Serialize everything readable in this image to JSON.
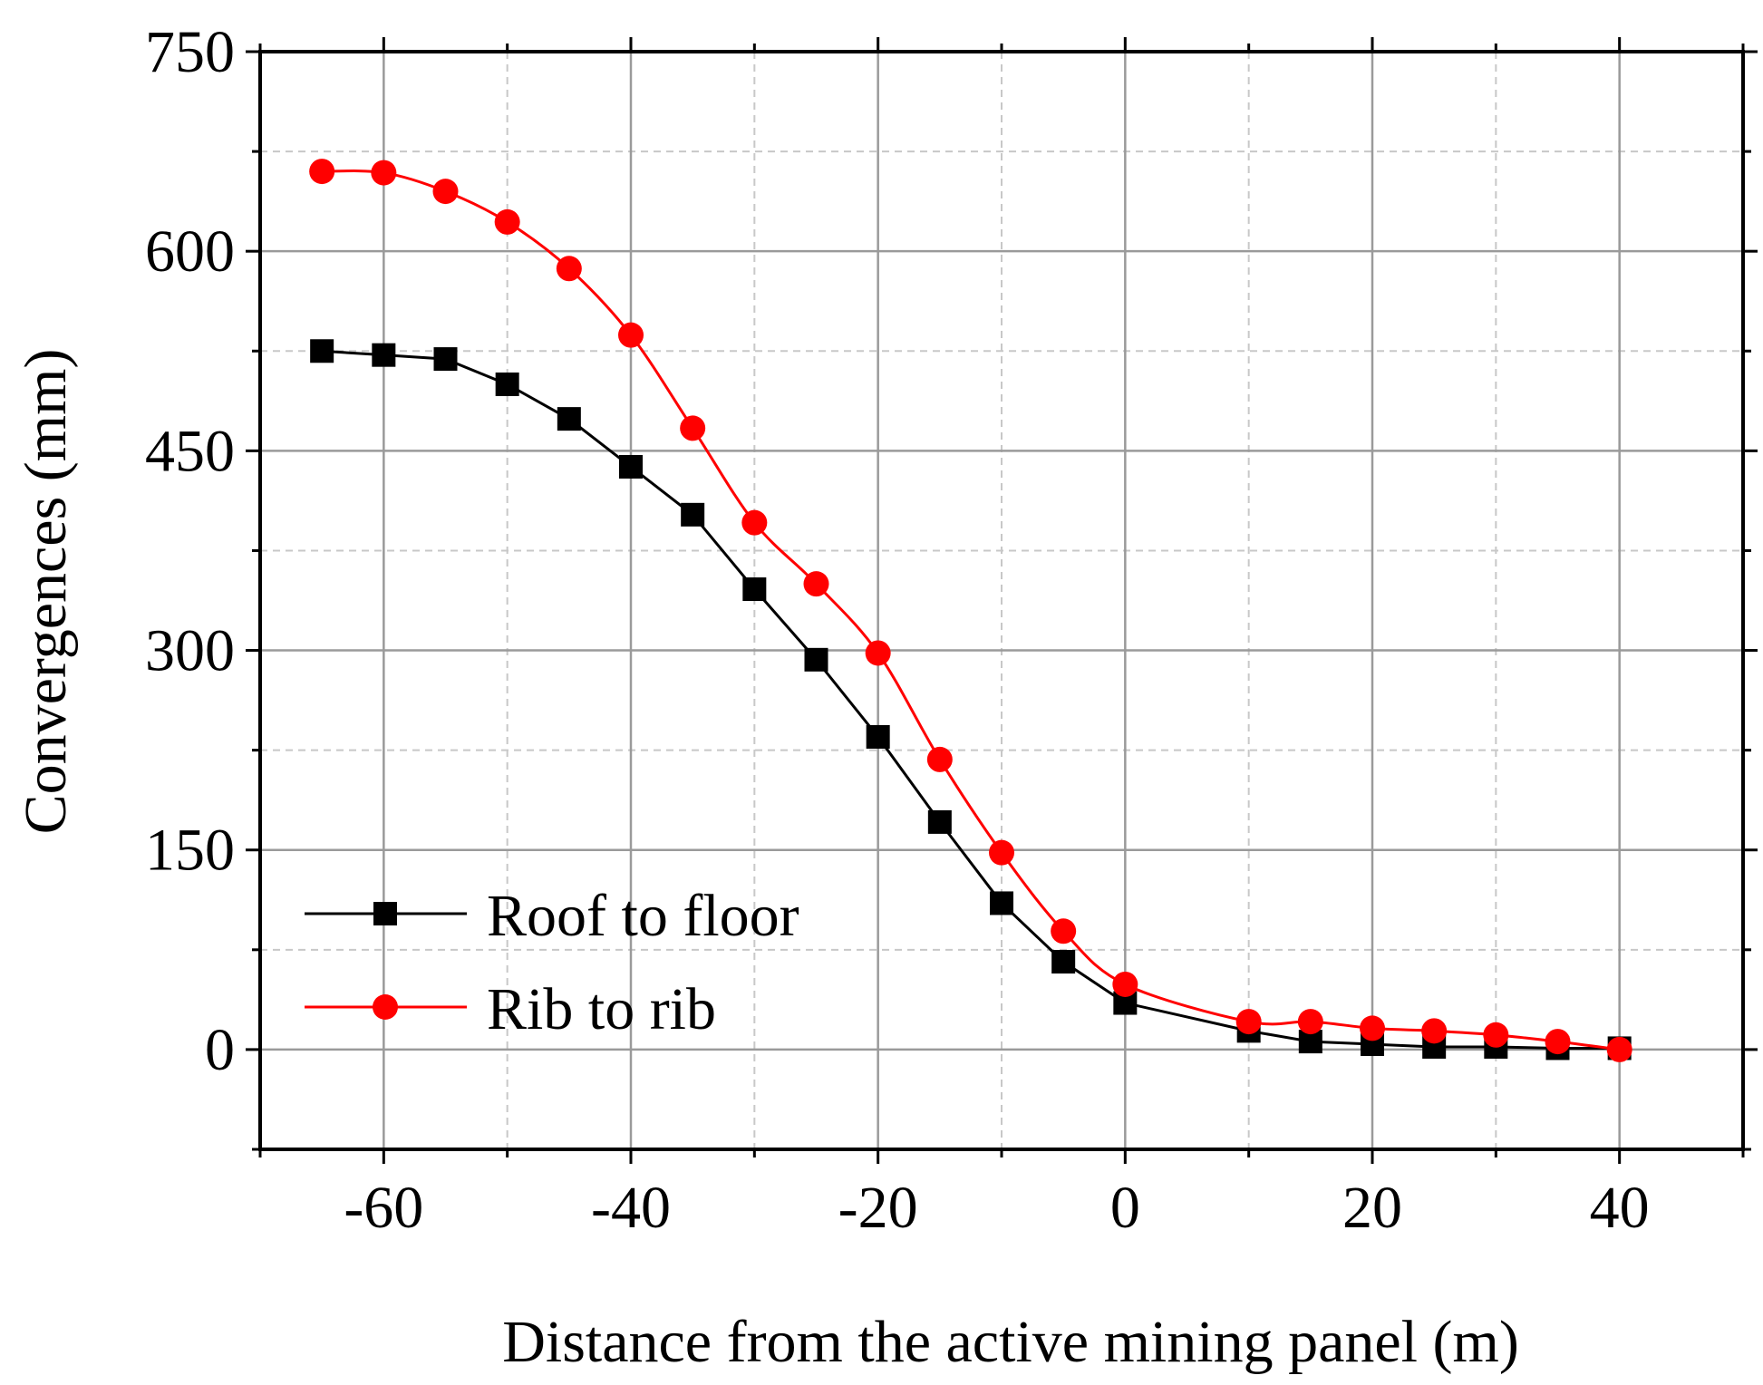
{
  "chart_data": {
    "type": "line",
    "title": "",
    "xlabel": "Distance from the active mining panel (m)",
    "ylabel": "Convergences (mm)",
    "xlim": [
      -70,
      50
    ],
    "ylim": [
      -75,
      750
    ],
    "xticks": [
      -60,
      -40,
      -20,
      0,
      20,
      40
    ],
    "yticks": [
      0,
      150,
      300,
      450,
      600,
      750
    ],
    "grid": true,
    "legend_position": "bottom-left",
    "series": [
      {
        "name": "Roof to floor",
        "color": "#000000",
        "marker": "square",
        "x": [
          -65,
          -60,
          -55,
          -50,
          -45,
          -40,
          -35,
          -30,
          -25,
          -20,
          -15,
          -10,
          -5,
          0,
          10,
          15,
          20,
          25,
          30,
          35,
          40
        ],
        "values": [
          525,
          522,
          519,
          500,
          474,
          438,
          402,
          346,
          293,
          235,
          171,
          110,
          66,
          35,
          14,
          6,
          4,
          2,
          2,
          1,
          1
        ]
      },
      {
        "name": "Rib to rib",
        "color": "#ff0000",
        "marker": "circle",
        "x": [
          -65,
          -60,
          -55,
          -50,
          -45,
          -40,
          -35,
          -30,
          -25,
          -20,
          -15,
          -10,
          -5,
          0,
          10,
          15,
          20,
          25,
          30,
          35,
          40
        ],
        "values": [
          660,
          659,
          645,
          622,
          587,
          537,
          467,
          396,
          350,
          298,
          218,
          148,
          89,
          49,
          21,
          21,
          16,
          14,
          11,
          6,
          0
        ]
      }
    ]
  }
}
